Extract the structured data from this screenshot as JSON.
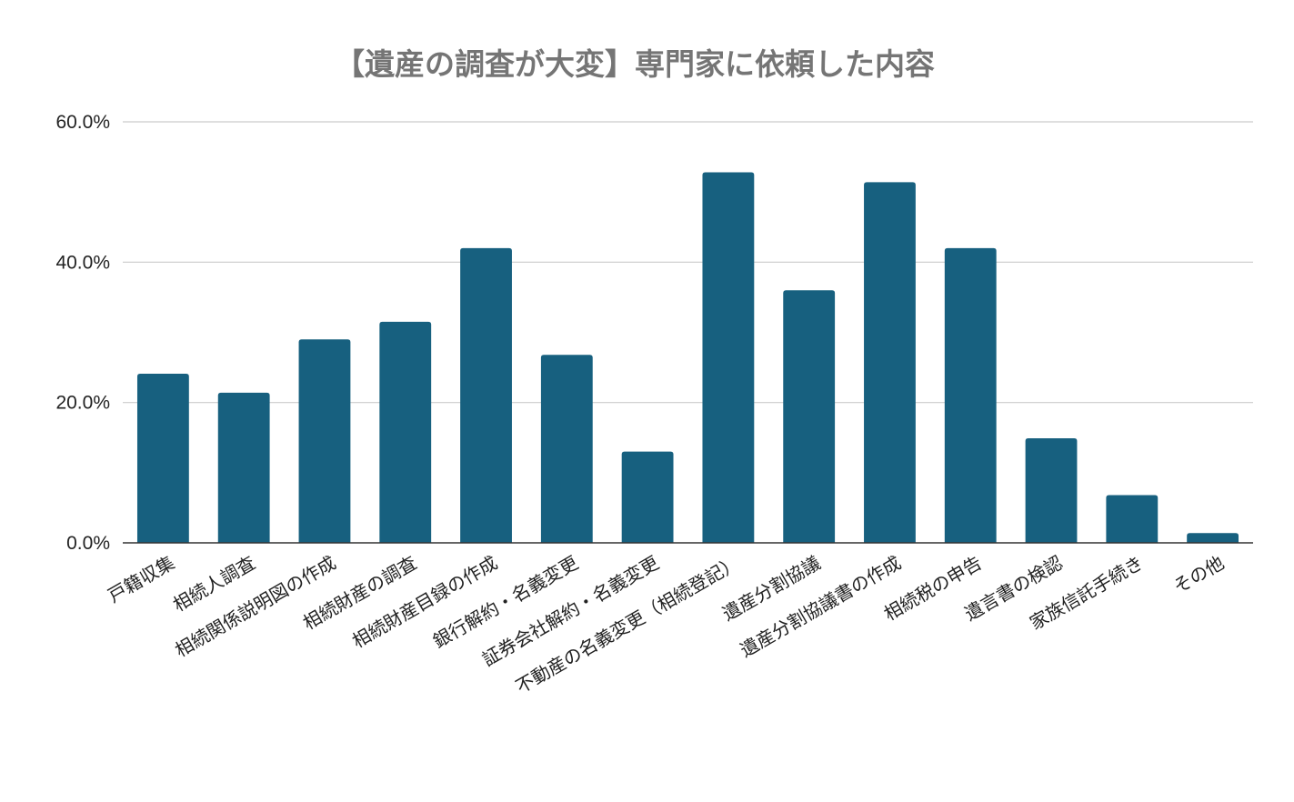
{
  "chart_data": {
    "type": "bar",
    "title": "【遺産の調査が大変】専門家に依頼した内容",
    "xlabel": "",
    "ylabel": "",
    "ylim": [
      0,
      60
    ],
    "yticks": [
      "0.0%",
      "20.0%",
      "40.0%",
      "60.0%"
    ],
    "grid": true,
    "legend": "none",
    "bar_color": "#17607f",
    "categories": [
      "戸籍収集",
      "相続人調査",
      "相続関係説明図の作成",
      "相続財産の調査",
      "相続財産目録の作成",
      "銀行解約・名義変更",
      "証券会社解約・名義変更",
      "不動産の名義変更（相続登記）",
      "遺産分割協議",
      "遺産分割協議書の作成",
      "相続税の申告",
      "遺言書の検認",
      "家族信託手続き",
      "その他"
    ],
    "values": [
      24.1,
      21.4,
      29.0,
      31.5,
      42.0,
      26.8,
      13.0,
      52.8,
      36.0,
      51.4,
      42.0,
      14.9,
      6.8,
      1.4
    ]
  }
}
